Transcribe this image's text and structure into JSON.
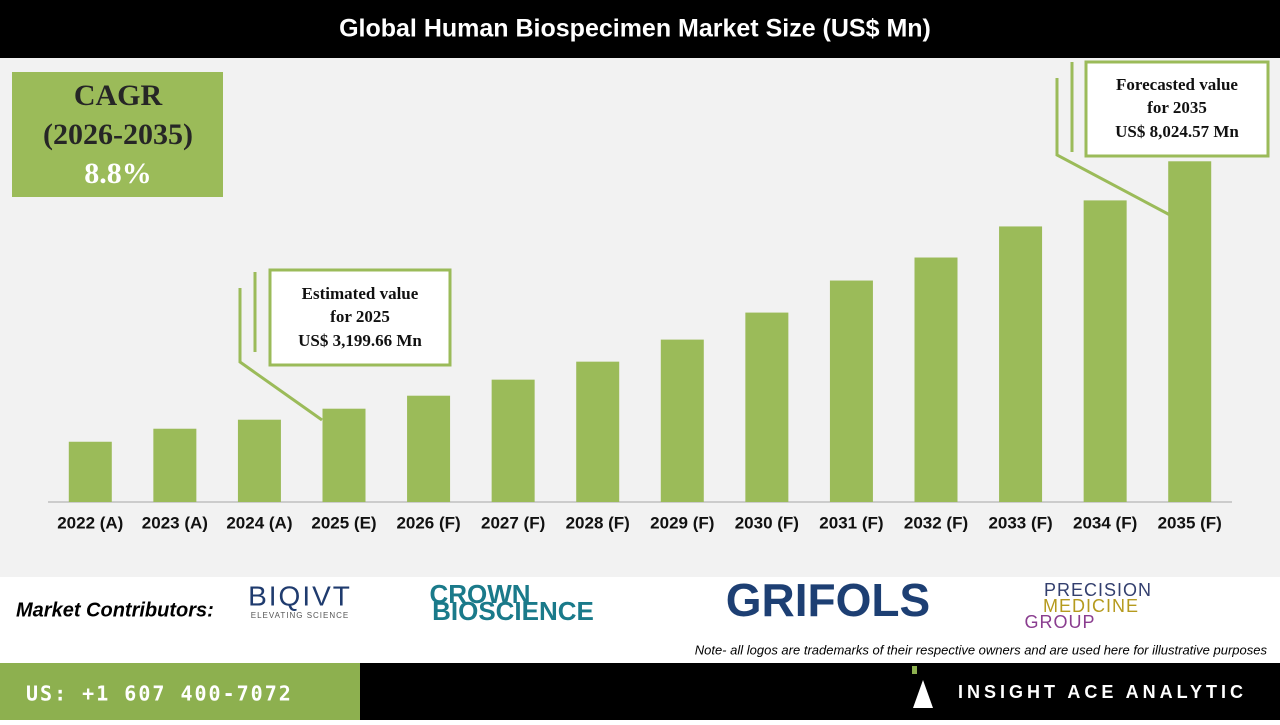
{
  "chart_data": {
    "type": "bar",
    "title": "Global Human Biospecimen Market Size (US$ Mn)",
    "categories": [
      "2022 (A)",
      "2023 (A)",
      "2024 (A)",
      "2025 (E)",
      "2026 (F)",
      "2027 (F)",
      "2028 (F)",
      "2029 (F)",
      "2030 (F)",
      "2031 (F)",
      "2032 (F)",
      "2033 (F)",
      "2034 (F)",
      "2035 (F)"
    ],
    "values": [
      2555,
      2809,
      2985,
      3199.66,
      3453,
      3766,
      4117,
      4547,
      5074,
      5699,
      6148,
      6754,
      7262,
      8024.57
    ],
    "value_labels": [
      null,
      null,
      null,
      "US$ 3,199.66 Mn",
      null,
      null,
      null,
      null,
      null,
      null,
      null,
      null,
      null,
      "US$ 8,024.57 Mn"
    ],
    "annotations": [
      [
        "Estimated value",
        "for 2025"
      ],
      [
        "Forecasted value",
        "for 2035"
      ]
    ],
    "color": "#9bbb59",
    "ylim": [
      1380,
      10000
    ]
  },
  "cagr": {
    "label": "CAGR",
    "period": "(2026-2035)",
    "value": "8.8%"
  },
  "contributors": {
    "label": "Market Contributors:",
    "logos": [
      [
        "BIQIVT",
        "ELEVATING SCIENCE"
      ],
      [
        "CROWN",
        "BIOSCIENCE"
      ],
      [
        "GRIFOLS"
      ],
      [
        "PRECISION",
        "MEDICINE",
        "GROUP"
      ]
    ],
    "note": "Note- all logos are trademarks of their respective owners and are used here for illustrative purposes"
  },
  "footer": {
    "phone": "US: +1 607 400-7072",
    "brand": "INSIGHT ACE ANALYTIC"
  }
}
